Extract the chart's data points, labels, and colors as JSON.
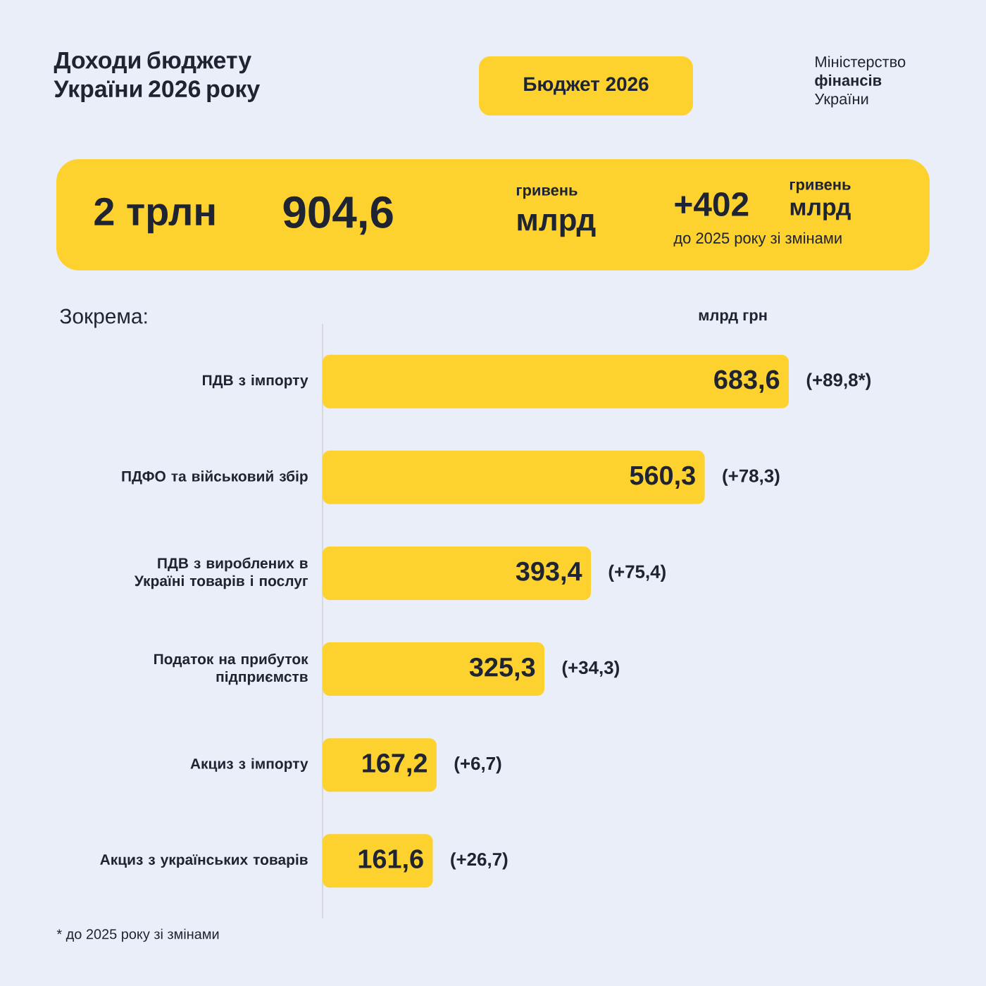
{
  "chart_data": {
    "type": "bar",
    "orientation": "horizontal",
    "title": "Доходи бюджету України 2026 року",
    "subtitle": "Бюджет 2026",
    "xlabel": "млрд грн",
    "categories": [
      "ПДВ з імпорту",
      "ПДФО та військовий збір",
      "ПДВ з вироблених в Україні товарів і послуг",
      "Податок на прибуток підприємств",
      "Акциз з імпорту",
      "Акциз з українських товарів"
    ],
    "values": [
      683.6,
      560.3,
      393.4,
      325.3,
      167.2,
      161.6
    ],
    "value_labels": [
      "683,6",
      "560,3",
      "393,4",
      "325,3",
      "167,2",
      "161,6"
    ],
    "color": "#fdd22f",
    "tick_labels": "y",
    "annotations": [
      "Міністерство **фінансів** України",
      "2 трлн",
      "904,6",
      "гривень",
      "млрд",
      "+402",
      "гривень",
      "млрд",
      "до 2025 року зі змінами",
      "Зокрема:",
      "* до 2025 року зі змінами",
      "(+89,8*)",
      "(+78,3)",
      "(+75,4)",
      "(+34,3)",
      "(+6,7)",
      "(+26,7)"
    ]
  }
}
